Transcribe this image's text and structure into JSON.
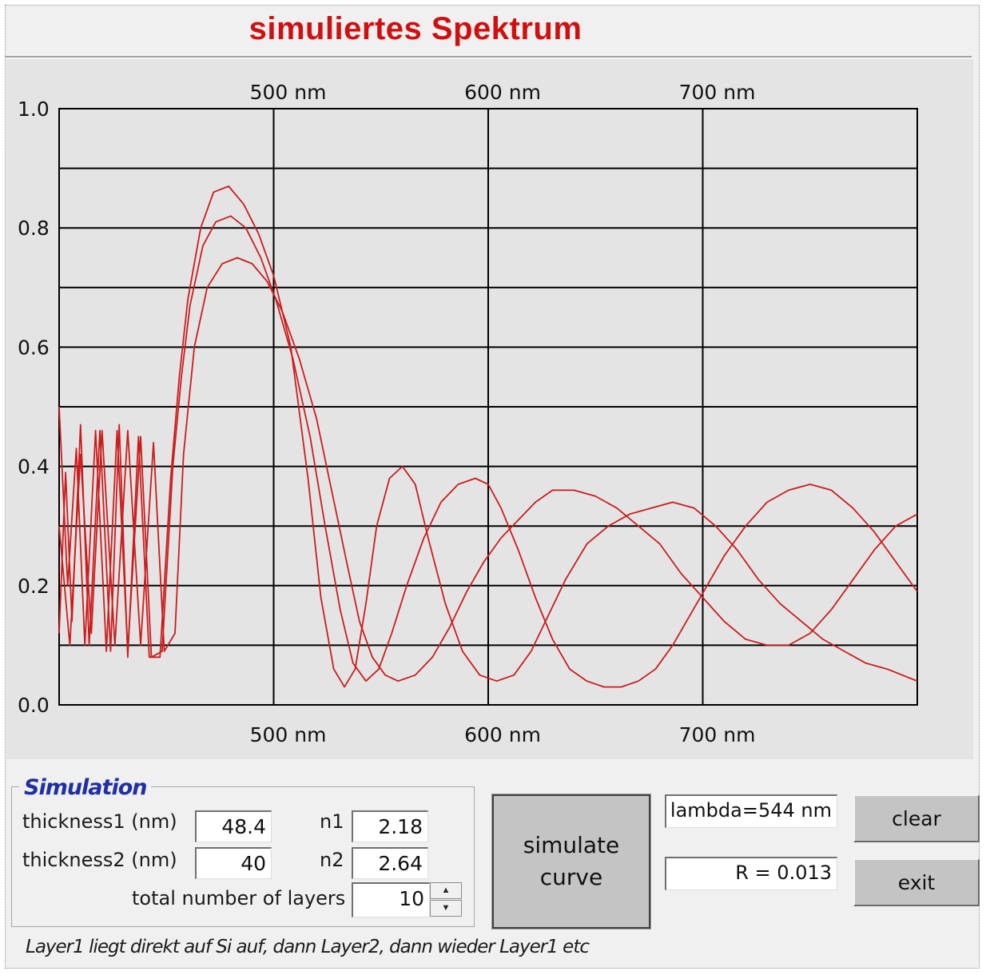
{
  "window": {
    "title": "simuliertes Spektrum"
  },
  "chart_data": {
    "type": "line",
    "title": "simuliertes Spektrum",
    "x_unit": "nm",
    "xlim": [
      400,
      800
    ],
    "ylim": [
      0.0,
      1.0
    ],
    "x_tick_labels": [
      "500 nm",
      "600 nm",
      "700 nm"
    ],
    "x_tick_values": [
      500,
      600,
      700
    ],
    "y_tick_labels": [
      "0.0",
      "0.2",
      "0.4",
      "0.6",
      "0.8",
      "1.0"
    ],
    "y_tick_values": [
      0.0,
      0.2,
      0.4,
      0.6,
      0.8,
      1.0
    ],
    "grid": true,
    "line_color": "#cc1c1c",
    "series": [
      {
        "x": [
          400,
          403,
          406,
          410,
          414,
          419,
          424,
          428,
          432,
          437,
          442,
          447,
          452,
          456,
          460,
          466,
          472,
          479,
          486,
          493,
          500,
          508,
          516,
          522,
          528,
          533,
          538,
          543,
          548,
          554,
          560,
          566,
          572,
          580,
          588,
          596,
          604,
          612,
          620,
          628,
          636,
          646,
          656,
          666,
          676,
          686,
          696,
          706,
          716,
          726,
          736,
          746,
          756,
          766,
          776,
          786,
          800
        ],
        "y": [
          0.12,
          0.39,
          0.14,
          0.47,
          0.1,
          0.46,
          0.09,
          0.47,
          0.08,
          0.45,
          0.08,
          0.08,
          0.38,
          0.55,
          0.68,
          0.8,
          0.86,
          0.87,
          0.84,
          0.79,
          0.72,
          0.6,
          0.38,
          0.18,
          0.06,
          0.03,
          0.06,
          0.17,
          0.3,
          0.38,
          0.4,
          0.37,
          0.28,
          0.17,
          0.09,
          0.05,
          0.04,
          0.05,
          0.09,
          0.15,
          0.21,
          0.27,
          0.3,
          0.32,
          0.33,
          0.34,
          0.33,
          0.3,
          0.26,
          0.21,
          0.17,
          0.14,
          0.11,
          0.09,
          0.07,
          0.06,
          0.04
        ]
      },
      {
        "x": [
          400,
          404,
          408,
          412,
          417,
          422,
          427,
          432,
          438,
          443,
          448,
          453,
          457,
          461,
          467,
          473,
          480,
          487,
          494,
          501,
          509,
          517,
          524,
          531,
          537,
          543,
          549,
          555,
          562,
          570,
          578,
          586,
          594,
          600,
          606,
          614,
          622,
          630,
          638,
          646,
          654,
          662,
          670,
          678,
          686,
          694,
          702,
          710,
          720,
          730,
          740,
          750,
          760,
          770,
          780,
          790,
          800
        ],
        "y": [
          0.5,
          0.2,
          0.43,
          0.1,
          0.46,
          0.09,
          0.46,
          0.09,
          0.45,
          0.08,
          0.09,
          0.4,
          0.55,
          0.67,
          0.77,
          0.81,
          0.82,
          0.8,
          0.75,
          0.68,
          0.58,
          0.45,
          0.3,
          0.16,
          0.07,
          0.04,
          0.06,
          0.12,
          0.2,
          0.28,
          0.34,
          0.37,
          0.38,
          0.37,
          0.33,
          0.26,
          0.18,
          0.11,
          0.06,
          0.04,
          0.03,
          0.03,
          0.04,
          0.06,
          0.1,
          0.15,
          0.2,
          0.25,
          0.3,
          0.34,
          0.36,
          0.37,
          0.36,
          0.33,
          0.29,
          0.24,
          0.19
        ]
      },
      {
        "x": [
          400,
          405,
          410,
          415,
          420,
          426,
          432,
          438,
          444,
          449,
          454,
          458,
          463,
          469,
          476,
          483,
          490,
          497,
          504,
          512,
          520,
          527,
          534,
          540,
          546,
          552,
          558,
          566,
          574,
          582,
          590,
          598,
          606,
          614,
          622,
          630,
          640,
          650,
          660,
          670,
          680,
          690,
          700,
          710,
          720,
          730,
          740,
          750,
          760,
          770,
          780,
          790,
          800
        ],
        "y": [
          0.3,
          0.1,
          0.42,
          0.12,
          0.46,
          0.1,
          0.46,
          0.1,
          0.44,
          0.09,
          0.12,
          0.42,
          0.6,
          0.7,
          0.74,
          0.75,
          0.74,
          0.71,
          0.66,
          0.58,
          0.48,
          0.36,
          0.24,
          0.14,
          0.08,
          0.05,
          0.04,
          0.05,
          0.08,
          0.13,
          0.19,
          0.24,
          0.28,
          0.31,
          0.34,
          0.36,
          0.36,
          0.35,
          0.33,
          0.3,
          0.27,
          0.22,
          0.18,
          0.14,
          0.11,
          0.1,
          0.1,
          0.12,
          0.16,
          0.21,
          0.26,
          0.3,
          0.32
        ]
      }
    ]
  },
  "simulation": {
    "group_label": "Simulation",
    "thickness1_label": "thickness1 (nm)",
    "thickness1_value": "48.4",
    "thickness2_label": "thickness2 (nm)",
    "thickness2_value": "40",
    "n1_label": "n1",
    "n1_value": "2.18",
    "n2_label": "n2",
    "n2_value": "2.64",
    "layers_label": "total number of layers",
    "layers_value": "10"
  },
  "buttons": {
    "simulate_line1": "simulate",
    "simulate_line2": "curve",
    "clear": "clear",
    "exit": "exit"
  },
  "readouts": {
    "lambda": "lambda=544 nm",
    "reflectance": "R = 0.013"
  },
  "footer_note": "Layer1 liegt direkt auf Si auf,  dann Layer2, dann wieder Layer1 etc"
}
